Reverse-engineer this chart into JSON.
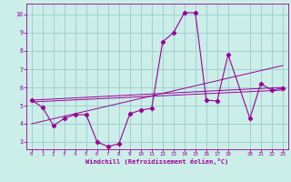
{
  "bg_color": "#cceee8",
  "line_color": "#990099",
  "grid_color": "#99cccc",
  "xlabel": "Windchill (Refroidissement éolien,°C)",
  "xlabel_color": "#990099",
  "tick_color": "#990099",
  "xlim": [
    -0.5,
    23.5
  ],
  "ylim": [
    2.6,
    10.6
  ],
  "xticks": [
    0,
    1,
    2,
    3,
    4,
    5,
    6,
    7,
    8,
    9,
    10,
    11,
    12,
    13,
    14,
    15,
    16,
    17,
    18,
    20,
    21,
    22,
    23
  ],
  "yticks": [
    3,
    4,
    5,
    6,
    7,
    8,
    9,
    10
  ],
  "series1_x": [
    0,
    1,
    2,
    3,
    4,
    5,
    6,
    7,
    8,
    9,
    10,
    11,
    12,
    13,
    14,
    15,
    16,
    17,
    18,
    20,
    21,
    22,
    23
  ],
  "series1_y": [
    5.3,
    4.9,
    3.9,
    4.3,
    4.5,
    4.5,
    3.0,
    2.75,
    2.9,
    4.55,
    4.75,
    4.85,
    8.5,
    9.0,
    10.1,
    10.1,
    5.3,
    5.25,
    7.8,
    4.3,
    6.2,
    5.85,
    5.95
  ],
  "series2_x": [
    0,
    23
  ],
  "series2_y": [
    5.3,
    6.0
  ],
  "series3_x": [
    0,
    23
  ],
  "series3_y": [
    5.2,
    5.85
  ],
  "series4_x": [
    0,
    23
  ],
  "series4_y": [
    4.0,
    7.2
  ]
}
